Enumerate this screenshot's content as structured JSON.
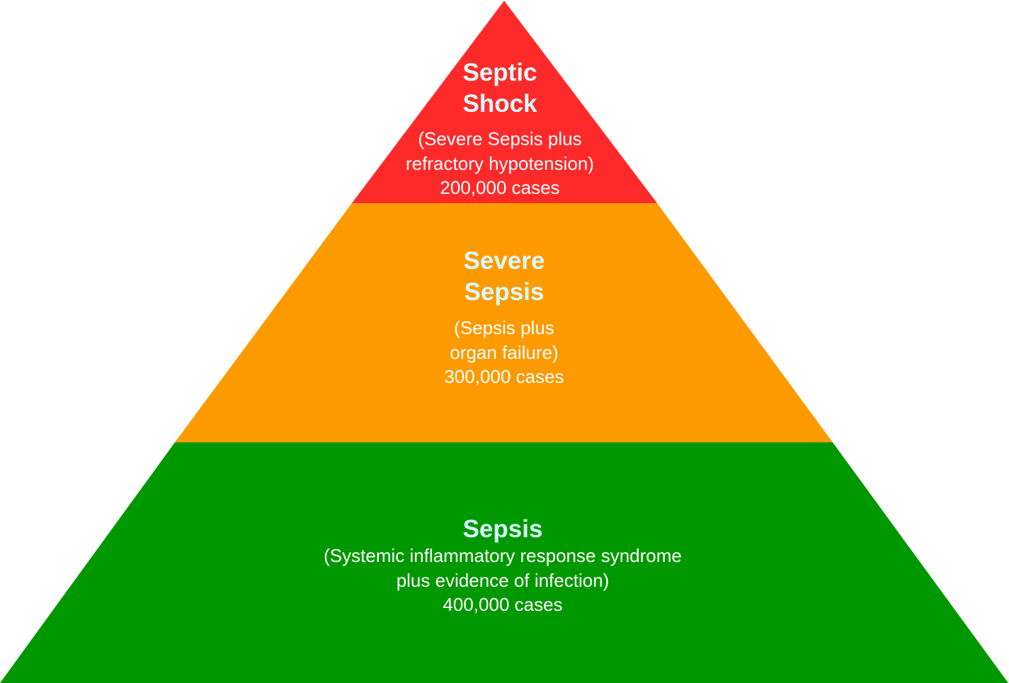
{
  "colors": {
    "top_tier": "#fe2a2a",
    "middle_tier": "#fc9a00",
    "base_tier": "#009800",
    "title_text": "#d8fafa",
    "body_text": "#ffffff",
    "background": "#ffffff"
  },
  "tiers": {
    "top": {
      "title_lines": [
        "Septic",
        "Shock"
      ],
      "description_lines": [
        "(Severe Sepsis plus",
        "refractory hypotension)"
      ],
      "cases": "200,000 cases"
    },
    "middle": {
      "title_lines": [
        "Severe",
        "Sepsis"
      ],
      "description_lines": [
        "(Sepsis plus",
        "organ failure)"
      ],
      "cases": "300,000 cases"
    },
    "base": {
      "title_lines": [
        "Sepsis"
      ],
      "description_lines": [
        "(Systemic inflammatory response syndrome",
        "plus evidence of infection)"
      ],
      "cases": "400,000 cases"
    }
  }
}
